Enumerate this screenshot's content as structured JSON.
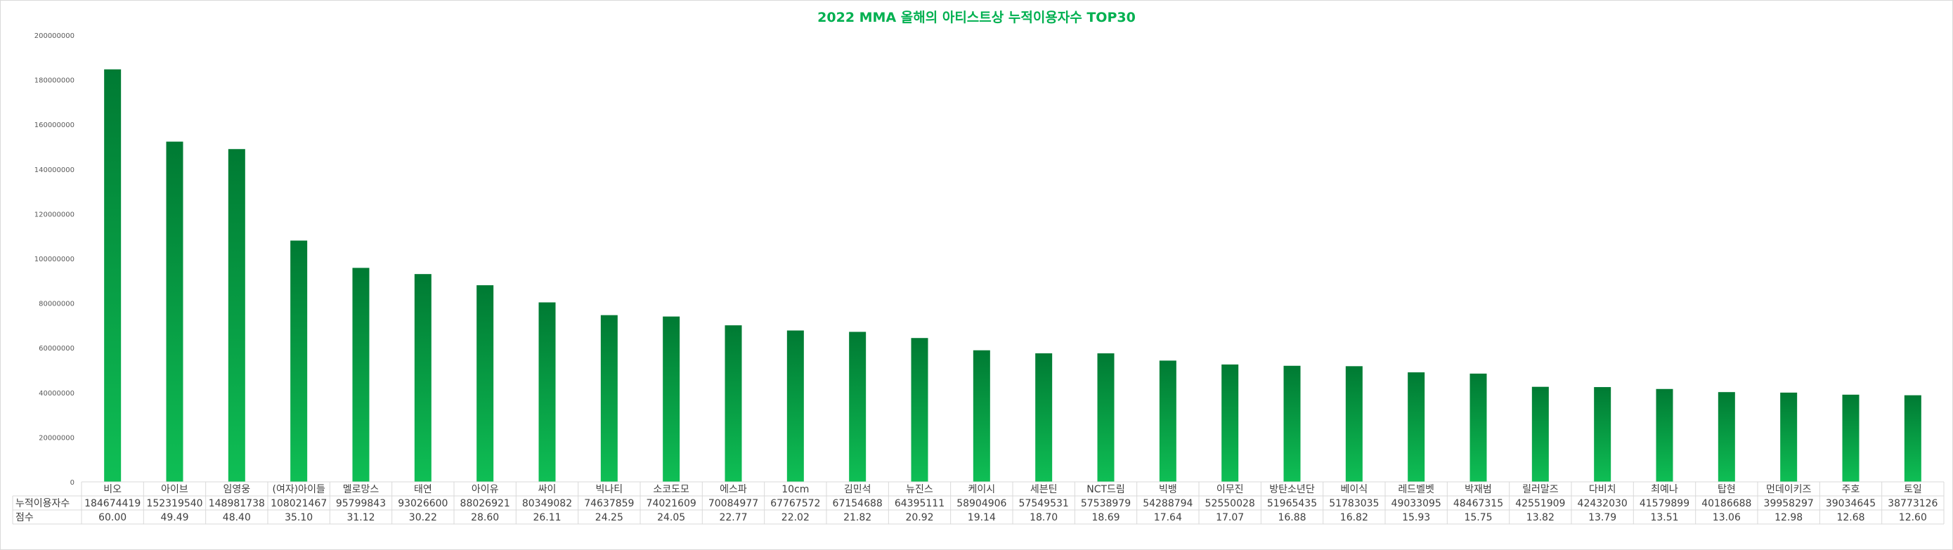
{
  "chart_data": {
    "type": "bar",
    "title": "2022 MMA 올해의 아티스트상 누적이용자수 TOP30",
    "ylim": [
      0,
      200000000
    ],
    "yticks": [
      0,
      20000000,
      40000000,
      60000000,
      80000000,
      100000000,
      120000000,
      140000000,
      160000000,
      180000000,
      200000000
    ],
    "grid": false,
    "legend": "none",
    "categories": [
      "비오",
      "아이브",
      "임영웅",
      "(여자)아이들",
      "멜로망스",
      "태연",
      "아이유",
      "싸이",
      "빅나티",
      "소코도모",
      "에스파",
      "10cm",
      "김민석",
      "뉴진스",
      "케이시",
      "세븐틴",
      "NCT드림",
      "빅뱅",
      "이무진",
      "방탄소년단",
      "베이식",
      "레드벨벳",
      "박재범",
      "릴러말즈",
      "다비치",
      "최예나",
      "탑현",
      "먼데이키즈",
      "주호",
      "토일"
    ],
    "table_rows": [
      {
        "label": "누적이용자수",
        "values": [
          184674419,
          152319540,
          148981738,
          108021467,
          95799843,
          93026600,
          88026921,
          80349082,
          74637859,
          74021609,
          70084977,
          67767572,
          67154688,
          64395111,
          58904906,
          57549531,
          57538979,
          54288794,
          52550028,
          51965435,
          51783035,
          49033095,
          48467315,
          42551909,
          42432030,
          41579899,
          40186688,
          39958297,
          39034645,
          38773126
        ]
      },
      {
        "label": "점수",
        "values": [
          "60.00",
          "49.49",
          "48.40",
          "35.10",
          "31.12",
          "30.22",
          "28.60",
          "26.11",
          "24.25",
          "24.05",
          "22.77",
          "22.02",
          "21.82",
          "20.92",
          "19.14",
          "18.70",
          "18.69",
          "17.64",
          "17.07",
          "16.88",
          "16.82",
          "15.93",
          "15.75",
          "13.82",
          "13.79",
          "13.51",
          "13.06",
          "12.98",
          "12.68",
          "12.60"
        ]
      }
    ]
  },
  "colors": {
    "bar_top": "#007a33",
    "bar_bottom": "#0fbf55",
    "title": "#00b050",
    "axis_text": "#595959",
    "grid_line": "#d9d9d9"
  }
}
